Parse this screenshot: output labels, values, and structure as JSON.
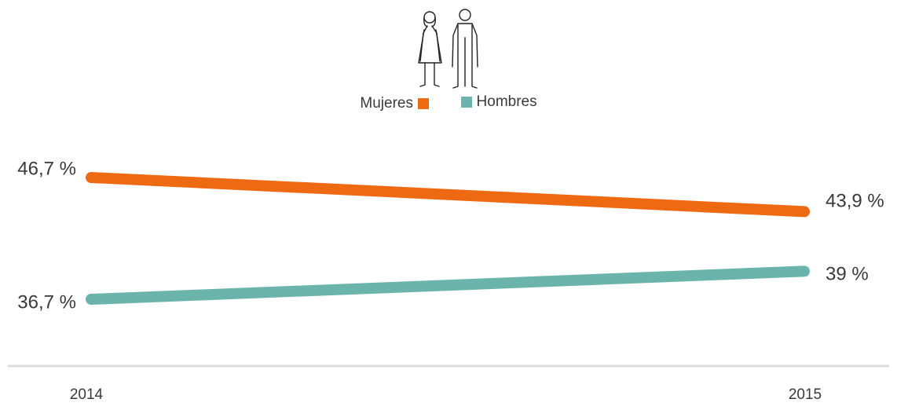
{
  "chart_data": {
    "type": "line",
    "x": [
      "2014",
      "2015"
    ],
    "series": [
      {
        "name": "Mujeres",
        "values": [
          46.7,
          43.9
        ],
        "labels": [
          "46,7 %",
          "43,9 %"
        ],
        "color": "#ed6a13"
      },
      {
        "name": "Hombres",
        "values": [
          36.7,
          39
        ],
        "labels": [
          "36,7 %",
          "39 %"
        ],
        "color": "#6ab4ac"
      }
    ],
    "legend_position": "top-center",
    "grid": false,
    "icons": [
      "woman-figure-icon",
      "man-figure-icon"
    ]
  }
}
